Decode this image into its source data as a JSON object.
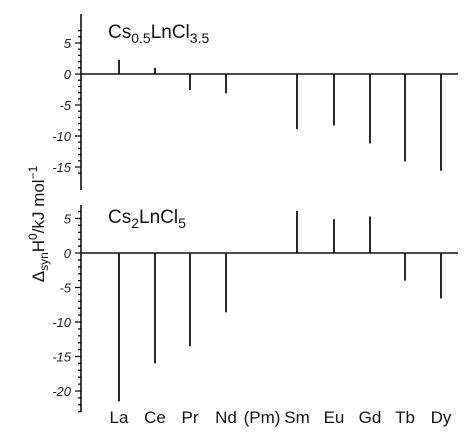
{
  "chart_data": [
    {
      "type": "bar",
      "title_parts": [
        "Cs",
        "0.5",
        "LnCl",
        "3.5"
      ],
      "categories": [
        "La",
        "Ce",
        "Pr",
        "Nd",
        "(Pm)",
        "Sm",
        "Eu",
        "Gd",
        "Tb",
        "Dy"
      ],
      "values": [
        2.3,
        1.0,
        -2.6,
        -3.1,
        null,
        -8.9,
        -8.3,
        -11.2,
        -14.1,
        -15.6
      ],
      "ylim": [
        -16,
        7
      ],
      "yticks": [
        5,
        0,
        -5,
        -10,
        -15
      ],
      "ytick_labels": [
        "5",
        "0",
        "-5",
        "-10",
        "-15"
      ]
    },
    {
      "type": "bar",
      "title_parts": [
        "Cs",
        "2",
        "LnCl",
        "5"
      ],
      "categories": [
        "La",
        "Ce",
        "Pr",
        "Nd",
        "(Pm)",
        "Sm",
        "Eu",
        "Gd",
        "Tb",
        "Dy"
      ],
      "values": [
        -21.5,
        -16.0,
        -13.5,
        -8.6,
        null,
        6.1,
        4.9,
        5.3,
        -4.0,
        -6.6
      ],
      "ylim": [
        -23,
        7
      ],
      "yticks": [
        5,
        0,
        -5,
        -10,
        -15,
        -20
      ],
      "ytick_labels": [
        "5",
        "0",
        "-5",
        "-10",
        "-15",
        "-20"
      ]
    }
  ],
  "ylabel_parts": [
    "Δ",
    "syn",
    "H",
    "0",
    "/kJ mol",
    "−1"
  ],
  "category_labels": [
    "La",
    "Ce",
    "Pr",
    "Nd",
    "(Pm)",
    "Sm",
    "Eu",
    "Gd",
    "Tb",
    "Dy"
  ]
}
